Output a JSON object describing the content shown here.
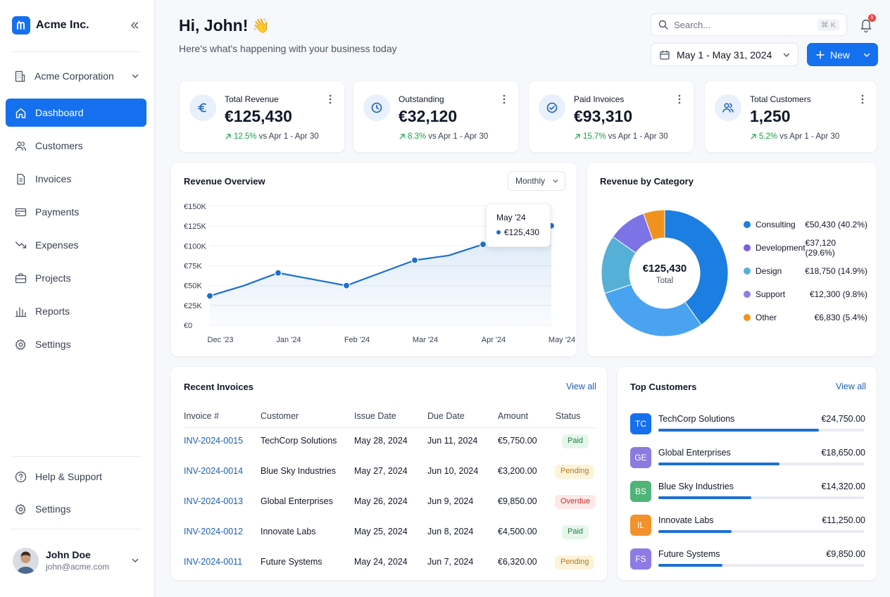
{
  "brand": {
    "name": "Acme Inc."
  },
  "org": {
    "name": "Acme Corporation"
  },
  "nav": [
    {
      "key": "dashboard",
      "label": "Dashboard",
      "icon": "home-icon",
      "active": true
    },
    {
      "key": "customers",
      "label": "Customers",
      "icon": "users-icon"
    },
    {
      "key": "invoices",
      "label": "Invoices",
      "icon": "file-icon"
    },
    {
      "key": "payments",
      "label": "Payments",
      "icon": "credit-card-icon"
    },
    {
      "key": "expenses",
      "label": "Expenses",
      "icon": "trending-down-icon"
    },
    {
      "key": "projects",
      "label": "Projects",
      "icon": "briefcase-icon"
    },
    {
      "key": "reports",
      "label": "Reports",
      "icon": "bar-chart-icon"
    },
    {
      "key": "settings",
      "label": "Settings",
      "icon": "gear-icon"
    }
  ],
  "footer_nav": [
    {
      "key": "help",
      "label": "Help & Support",
      "icon": "help-circle-icon"
    },
    {
      "key": "settings",
      "label": "Settings",
      "icon": "gear-icon"
    }
  ],
  "user": {
    "name": "John Doe",
    "email": "john@acme.com"
  },
  "header": {
    "greeting": "Hi, John!",
    "emoji": "👋",
    "subtitle": "Here's what's happening with your business today",
    "search_placeholder": "Search...",
    "search_shortcut": "⌘ K",
    "notification_count": "5",
    "date_range": "May 1 - May 31, 2024",
    "new_label": "New"
  },
  "stats": [
    {
      "label": "Total Revenue",
      "value": "€125,430",
      "change": "12.5%",
      "compare": "vs Apr 1 - Apr 30",
      "icon": "euro-icon"
    },
    {
      "label": "Outstanding",
      "value": "€32,120",
      "change": "8.3%",
      "compare": "vs Apr 1 - Apr 30",
      "icon": "clock-icon"
    },
    {
      "label": "Paid Invoices",
      "value": "€93,310",
      "change": "15.7%",
      "compare": "vs Apr 1 - Apr 30",
      "icon": "check-circle-icon"
    },
    {
      "label": "Total Customers",
      "value": "1,250",
      "change": "5.2%",
      "compare": "vs Apr 1 - Apr 30",
      "icon": "users-icon"
    }
  ],
  "revenue_overview": {
    "title": "Revenue Overview",
    "period": "Monthly",
    "tooltip": {
      "label": "May '24",
      "value": "€125,430"
    }
  },
  "revenue_by_category": {
    "title": "Revenue by Category",
    "center_value": "€125,430",
    "center_label": "Total"
  },
  "chart_data": [
    {
      "type": "area",
      "title": "Revenue Overview",
      "x": [
        "Dec '23",
        "",
        "Jan '24",
        "",
        "Feb '24",
        "",
        "Mar '24",
        "",
        "Apr '24",
        "",
        "May '24"
      ],
      "x_ticks": [
        "Dec '23",
        "Jan '24",
        "Feb '24",
        "Mar '24",
        "Apr '24",
        "May '24"
      ],
      "y_ticks": [
        "€0",
        "€25K",
        "€50K",
        "€75K",
        "€100K",
        "€125K",
        "€150K"
      ],
      "ylim": [
        0,
        150000
      ],
      "series": [
        {
          "values": [
            37000,
            50000,
            66000,
            58000,
            50000,
            66000,
            82000,
            88000,
            102000,
            112000,
            125430
          ],
          "markers": [
            0,
            2,
            4,
            6,
            8,
            10
          ]
        }
      ],
      "grid": true,
      "color": "#1c6fd1"
    },
    {
      "type": "pie",
      "title": "Revenue by Category",
      "categories": [
        "Consulting",
        "Development",
        "Design",
        "Support",
        "Other"
      ],
      "values": [
        50430,
        37120,
        18750,
        12300,
        6830
      ],
      "labels": [
        "€50,430 (40.2%)",
        "€37,120 (29.6%)",
        "€18,750 (14.9%)",
        "€12,300 (9.8%)",
        "€6,830 (5.4%)"
      ],
      "colors": [
        "#1c7ee0",
        "#4aa3f0",
        "#56afd6",
        "#7b73e6",
        "#f0931e"
      ],
      "legend_colors": [
        "#1c7ee0",
        "#7b5fe0",
        "#56afd6",
        "#8b80e8",
        "#f0931e"
      ],
      "donut": true,
      "legend": "right"
    }
  ],
  "invoices": {
    "title": "Recent Invoices",
    "view_all": "View all",
    "columns": [
      "Invoice #",
      "Customer",
      "Issue Date",
      "Due Date",
      "Amount",
      "Status"
    ],
    "rows": [
      {
        "id": "INV-2024-0015",
        "customer": "TechCorp Solutions",
        "issue": "May 28, 2024",
        "due": "Jun 11, 2024",
        "amount": "€5,750.00",
        "status": "Paid"
      },
      {
        "id": "INV-2024-0014",
        "customer": "Blue Sky Industries",
        "issue": "May 27, 2024",
        "due": "Jun 10, 2024",
        "amount": "€3,200.00",
        "status": "Pending"
      },
      {
        "id": "INV-2024-0013",
        "customer": "Global Enterprises",
        "issue": "May 26, 2024",
        "due": "Jun 9, 2024",
        "amount": "€9,850.00",
        "status": "Overdue"
      },
      {
        "id": "INV-2024-0012",
        "customer": "Innovate Labs",
        "issue": "May 25, 2024",
        "due": "Jun 8, 2024",
        "amount": "€4,500.00",
        "status": "Paid"
      },
      {
        "id": "INV-2024-0011",
        "customer": "Future Systems",
        "issue": "May 24, 2024",
        "due": "Jun 7, 2024",
        "amount": "€6,320.00",
        "status": "Pending"
      }
    ]
  },
  "top_customers": {
    "title": "Top Customers",
    "view_all": "View all",
    "max": 24750,
    "items": [
      {
        "initials": "TC",
        "name": "TechCorp Solutions",
        "amount": "€24,750.00",
        "value": 24750,
        "color": "#1570ef"
      },
      {
        "initials": "GE",
        "name": "Global Enterprises",
        "amount": "€18,650.00",
        "value": 18650,
        "color": "#8b7be0"
      },
      {
        "initials": "BS",
        "name": "Blue Sky Industries",
        "amount": "€14,320.00",
        "value": 14320,
        "color": "#4fb477"
      },
      {
        "initials": "IL",
        "name": "Innovate Labs",
        "amount": "€11,250.00",
        "value": 11250,
        "color": "#f2922a"
      },
      {
        "initials": "FS",
        "name": "Future Systems",
        "amount": "€9,850.00",
        "value": 9850,
        "color": "#8e7be6"
      }
    ]
  }
}
